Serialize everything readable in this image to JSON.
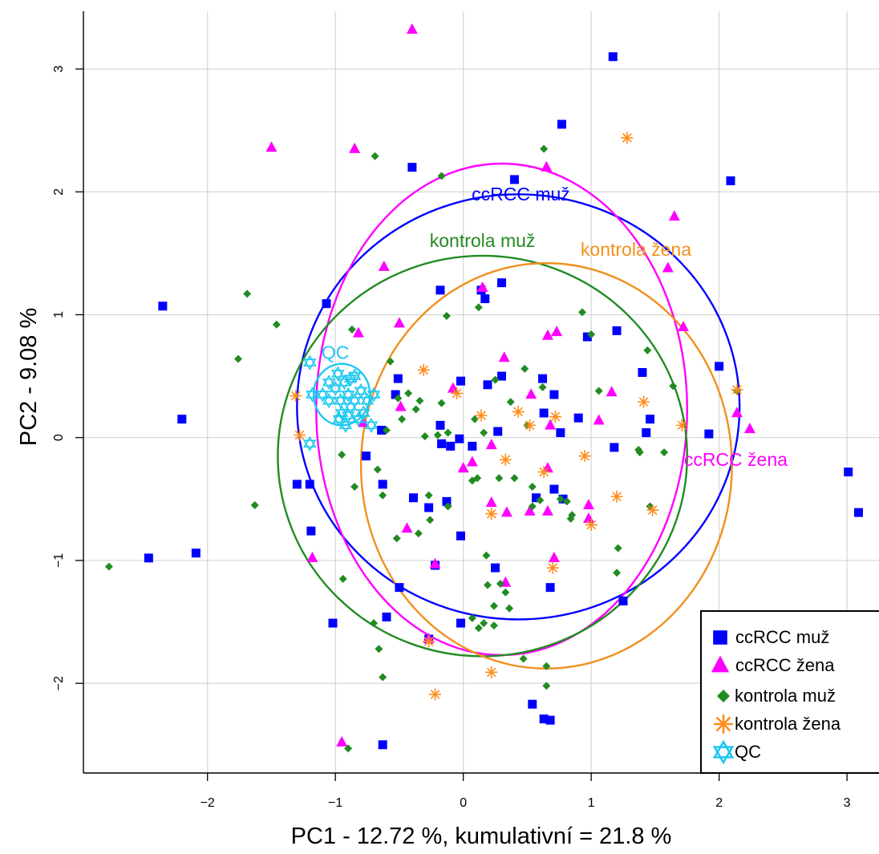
{
  "chart_data": {
    "type": "scatter",
    "title": "",
    "xlabel": "PC1 - 12.72 %, kumulativní = 21.8 %",
    "ylabel": "PC2 - 9.08 %",
    "xlim": [
      -2.97,
      3.25
    ],
    "ylim": [
      -2.73,
      3.47
    ],
    "x_ticks": [
      "−2",
      "−1",
      "0",
      "1",
      "2",
      "3"
    ],
    "x_tick_values": [
      -2,
      -1,
      0,
      1,
      2,
      3
    ],
    "y_ticks": [
      "−2",
      "−1",
      "0",
      "1",
      "2",
      "3"
    ],
    "y_tick_values": [
      -2,
      -1,
      0,
      1,
      2,
      3
    ],
    "grid": true,
    "legend_position": "bottom-right",
    "series": [
      {
        "name": "ccRCC muž",
        "color": "#0000ff",
        "marker": "square",
        "points": [
          [
            1.17,
            3.1
          ],
          [
            0.77,
            2.55
          ],
          [
            2.09,
            2.09
          ],
          [
            0.4,
            2.1
          ],
          [
            -0.4,
            2.2
          ],
          [
            -2.35,
            1.07
          ],
          [
            -1.07,
            1.09
          ],
          [
            -2.2,
            0.15
          ],
          [
            -0.18,
            1.2
          ],
          [
            0.17,
            1.13
          ],
          [
            0.3,
            1.26
          ],
          [
            0.14,
            1.2
          ],
          [
            0.97,
            0.82
          ],
          [
            1.2,
            0.87
          ],
          [
            1.4,
            0.53
          ],
          [
            1.46,
            0.15
          ],
          [
            1.43,
            0.04
          ],
          [
            1.92,
            0.03
          ],
          [
            2.0,
            0.58
          ],
          [
            0.62,
            0.48
          ],
          [
            0.71,
            0.35
          ],
          [
            0.63,
            0.2
          ],
          [
            0.9,
            0.16
          ],
          [
            0.76,
            0.04
          ],
          [
            0.3,
            0.5
          ],
          [
            0.19,
            0.43
          ],
          [
            -0.02,
            0.46
          ],
          [
            -0.51,
            0.48
          ],
          [
            -0.53,
            0.35
          ],
          [
            -0.18,
            0.1
          ],
          [
            -0.17,
            -0.05
          ],
          [
            -0.03,
            -0.01
          ],
          [
            -0.64,
            0.06
          ],
          [
            0.27,
            0.05
          ],
          [
            -1.3,
            -0.38
          ],
          [
            -1.2,
            -0.38
          ],
          [
            -1.19,
            -0.76
          ],
          [
            -0.76,
            -0.15
          ],
          [
            -0.63,
            -0.38
          ],
          [
            -0.39,
            -0.49
          ],
          [
            -0.27,
            -0.57
          ],
          [
            -0.13,
            -0.52
          ],
          [
            -0.1,
            -0.07
          ],
          [
            -0.02,
            -0.8
          ],
          [
            0.07,
            -0.07
          ],
          [
            0.57,
            -0.49
          ],
          [
            0.71,
            -0.42
          ],
          [
            0.78,
            -0.5
          ],
          [
            1.18,
            -0.08
          ],
          [
            3.01,
            -0.28
          ],
          [
            3.09,
            -0.61
          ],
          [
            -2.46,
            -0.98
          ],
          [
            -2.09,
            -0.94
          ],
          [
            -0.5,
            -1.22
          ],
          [
            -0.22,
            -1.04
          ],
          [
            0.25,
            -1.06
          ],
          [
            0.68,
            -1.22
          ],
          [
            1.25,
            -1.33
          ],
          [
            -1.02,
            -1.51
          ],
          [
            -0.6,
            -1.46
          ],
          [
            -0.27,
            -1.64
          ],
          [
            -0.02,
            -1.51
          ],
          [
            0.54,
            -2.17
          ],
          [
            0.63,
            -2.29
          ],
          [
            0.68,
            -2.3
          ],
          [
            -0.63,
            -2.5
          ]
        ]
      },
      {
        "name": "ccRCC žena",
        "color": "#ff00ff",
        "marker": "triangle",
        "points": [
          [
            -0.4,
            3.32
          ],
          [
            -1.5,
            2.36
          ],
          [
            -0.85,
            2.35
          ],
          [
            0.65,
            2.2
          ],
          [
            1.65,
            1.8
          ],
          [
            1.6,
            1.38
          ],
          [
            -0.62,
            1.39
          ],
          [
            0.15,
            1.22
          ],
          [
            1.72,
            0.9
          ],
          [
            0.73,
            0.86
          ],
          [
            0.66,
            0.83
          ],
          [
            -0.5,
            0.93
          ],
          [
            0.32,
            0.65
          ],
          [
            -0.82,
            0.85
          ],
          [
            -0.08,
            0.4
          ],
          [
            0.53,
            0.35
          ],
          [
            1.16,
            0.37
          ],
          [
            2.14,
            0.2
          ],
          [
            2.24,
            0.07
          ],
          [
            1.06,
            0.14
          ],
          [
            -0.78,
            0.12
          ],
          [
            -0.49,
            0.25
          ],
          [
            0.68,
            0.1
          ],
          [
            0.22,
            -0.06
          ],
          [
            0.66,
            -0.25
          ],
          [
            0.0,
            -0.25
          ],
          [
            0.66,
            -0.6
          ],
          [
            0.98,
            -0.55
          ],
          [
            0.98,
            -0.66
          ],
          [
            0.52,
            -0.6
          ],
          [
            0.34,
            -0.61
          ],
          [
            0.22,
            -0.53
          ],
          [
            -0.44,
            -0.74
          ],
          [
            -0.22,
            -1.03
          ],
          [
            0.71,
            -0.98
          ],
          [
            0.33,
            -1.18
          ],
          [
            -1.18,
            -0.98
          ],
          [
            -0.95,
            -2.48
          ],
          [
            -0.27,
            -1.64
          ],
          [
            0.07,
            -0.2
          ]
        ]
      },
      {
        "name": "kontrola muž",
        "color": "#228b22",
        "marker": "diamond",
        "points": [
          [
            0.63,
            2.35
          ],
          [
            -0.69,
            2.29
          ],
          [
            -0.17,
            2.13
          ],
          [
            -1.69,
            1.17
          ],
          [
            -1.46,
            0.92
          ],
          [
            -1.76,
            0.64
          ],
          [
            -0.87,
            0.88
          ],
          [
            -0.57,
            0.62
          ],
          [
            -0.43,
            0.36
          ],
          [
            -0.34,
            0.3
          ],
          [
            -0.17,
            0.28
          ],
          [
            -0.37,
            0.23
          ],
          [
            -0.48,
            0.15
          ],
          [
            -0.3,
            0.01
          ],
          [
            -0.12,
            0.04
          ],
          [
            0.09,
            0.15
          ],
          [
            0.16,
            0.04
          ],
          [
            -0.6,
            0.06
          ],
          [
            -0.51,
            0.32
          ],
          [
            0.37,
            0.29
          ],
          [
            0.48,
            0.56
          ],
          [
            0.62,
            0.41
          ],
          [
            0.5,
            0.1
          ],
          [
            0.25,
            0.47
          ],
          [
            0.12,
            1.06
          ],
          [
            -0.13,
            0.99
          ],
          [
            0.93,
            1.02
          ],
          [
            1.0,
            0.84
          ],
          [
            1.44,
            0.71
          ],
          [
            1.64,
            0.42
          ],
          [
            2.14,
            0.38
          ],
          [
            1.06,
            0.38
          ],
          [
            1.37,
            -0.1
          ],
          [
            1.38,
            -0.12
          ],
          [
            1.57,
            -0.12
          ],
          [
            1.46,
            -0.56
          ],
          [
            1.21,
            -0.9
          ],
          [
            1.2,
            -1.1
          ],
          [
            -0.95,
            -0.14
          ],
          [
            -0.67,
            -0.26
          ],
          [
            -0.85,
            -0.4
          ],
          [
            -0.63,
            -0.47
          ],
          [
            -0.27,
            -0.47
          ],
          [
            -0.26,
            -0.67
          ],
          [
            -0.12,
            -0.56
          ],
          [
            0.07,
            -0.35
          ],
          [
            0.11,
            -0.33
          ],
          [
            0.28,
            -0.33
          ],
          [
            0.4,
            -0.33
          ],
          [
            0.54,
            -0.4
          ],
          [
            0.54,
            -0.56
          ],
          [
            0.6,
            -0.51
          ],
          [
            0.76,
            -0.5
          ],
          [
            0.81,
            -0.52
          ],
          [
            0.85,
            -0.63
          ],
          [
            0.84,
            -0.66
          ],
          [
            -0.52,
            -0.82
          ],
          [
            -0.35,
            -0.78
          ],
          [
            0.18,
            -0.96
          ],
          [
            0.19,
            -1.2
          ],
          [
            0.29,
            -1.19
          ],
          [
            0.33,
            -1.26
          ],
          [
            0.36,
            -1.39
          ],
          [
            0.24,
            -1.37
          ],
          [
            0.07,
            -1.47
          ],
          [
            0.16,
            -1.51
          ],
          [
            0.24,
            -1.53
          ],
          [
            0.12,
            -1.55
          ],
          [
            -1.63,
            -0.55
          ],
          [
            -2.77,
            -1.05
          ],
          [
            -0.94,
            -1.15
          ],
          [
            -0.7,
            -1.51
          ],
          [
            -0.66,
            -1.72
          ],
          [
            0.65,
            -1.86
          ],
          [
            0.65,
            -2.02
          ],
          [
            0.47,
            -1.8
          ],
          [
            -0.63,
            -1.95
          ],
          [
            -0.9,
            -2.53
          ],
          [
            -0.2,
            0.02
          ]
        ]
      },
      {
        "name": "kontrola žena",
        "color": "#ff8c1a",
        "marker": "asterisk",
        "points": [
          [
            1.28,
            2.44
          ],
          [
            -1.31,
            0.34
          ],
          [
            -1.28,
            0.02
          ],
          [
            -0.31,
            0.55
          ],
          [
            -0.05,
            0.36
          ],
          [
            0.14,
            0.18
          ],
          [
            0.43,
            0.21
          ],
          [
            0.52,
            0.1
          ],
          [
            0.72,
            0.17
          ],
          [
            1.41,
            0.29
          ],
          [
            1.71,
            0.1
          ],
          [
            2.14,
            0.39
          ],
          [
            0.33,
            -0.18
          ],
          [
            0.63,
            -0.28
          ],
          [
            0.95,
            -0.15
          ],
          [
            1.2,
            -0.48
          ],
          [
            1.48,
            -0.59
          ],
          [
            1.0,
            -0.71
          ],
          [
            0.22,
            -0.62
          ],
          [
            0.7,
            -1.06
          ],
          [
            -0.27,
            -1.66
          ],
          [
            -0.22,
            -2.09
          ],
          [
            0.22,
            -1.91
          ]
        ]
      },
      {
        "name": "QC",
        "color": "#1ec8f0",
        "marker": "star-of-david",
        "points": [
          [
            -1.2,
            0.61
          ],
          [
            -1.18,
            0.35
          ],
          [
            -1.2,
            -0.05
          ],
          [
            -1.0,
            0.4
          ],
          [
            -0.96,
            0.3
          ],
          [
            -0.93,
            0.45
          ],
          [
            -0.9,
            0.35
          ],
          [
            -0.88,
            0.25
          ],
          [
            -0.95,
            0.2
          ],
          [
            -0.85,
            0.5
          ],
          [
            -1.05,
            0.3
          ],
          [
            -1.1,
            0.35
          ],
          [
            -0.97,
            0.15
          ],
          [
            -0.8,
            0.38
          ],
          [
            -0.78,
            0.2
          ],
          [
            -0.75,
            0.3
          ],
          [
            -0.7,
            0.35
          ],
          [
            -0.72,
            0.1
          ],
          [
            -0.82,
            0.15
          ],
          [
            -0.92,
            0.1
          ],
          [
            -0.88,
            0.48
          ],
          [
            -0.98,
            0.52
          ],
          [
            -1.05,
            0.45
          ],
          [
            -0.85,
            0.3
          ],
          [
            -0.9,
            0.18
          ]
        ]
      }
    ],
    "ellipses": [
      {
        "name": "ccRCC muž",
        "label": "ccRCC muž",
        "color": "#0000ff",
        "center": [
          0.43,
          0.25
        ],
        "rx": 1.73,
        "ry": 1.73
      },
      {
        "name": "ccRCC žena",
        "label": "ccRCC žena",
        "color": "#ff00ff",
        "center": [
          0.3,
          0.23
        ],
        "rx": 1.45,
        "ry": 2.0
      },
      {
        "name": "kontrola muž",
        "label": "kontrola muž",
        "color": "#228b22",
        "center": [
          0.15,
          -0.15
        ],
        "rx": 1.6,
        "ry": 1.63
      },
      {
        "name": "kontrola žena",
        "label": "kontrola žena",
        "color": "#f0901e",
        "center": [
          0.65,
          -0.23
        ],
        "rx": 1.45,
        "ry": 1.65
      },
      {
        "name": "QC",
        "label": "QC",
        "color": "#1ec8f0",
        "center": [
          -0.95,
          0.35
        ],
        "rx": 0.22,
        "ry": 0.25
      }
    ],
    "ellipse_labels": [
      {
        "text": "ccRCC muž",
        "color": "#0000ff",
        "x": 0.45,
        "y": 1.93
      },
      {
        "text": "kontrola muž",
        "color": "#228b22",
        "x": 0.15,
        "y": 1.55
      },
      {
        "text": "kontrola žena",
        "color": "#f0901e",
        "x": 1.35,
        "y": 1.48
      },
      {
        "text": "ccRCC žena",
        "color": "#ff00ff",
        "x": 2.13,
        "y": -0.23
      },
      {
        "text": "QC",
        "color": "#1ec8f0",
        "x": -1.0,
        "y": 0.64
      }
    ]
  }
}
